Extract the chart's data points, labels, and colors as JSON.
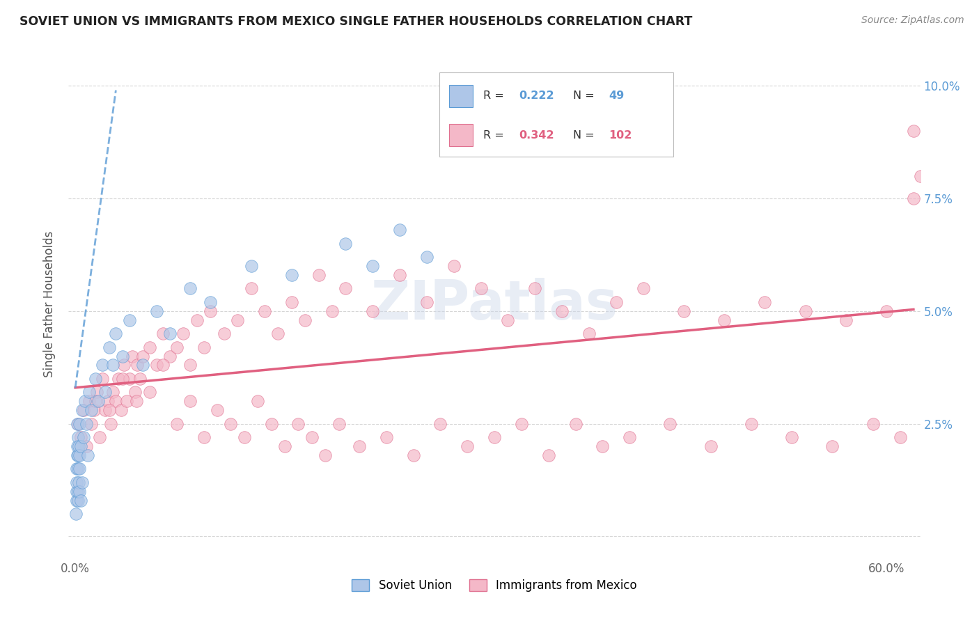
{
  "title": "SOVIET UNION VS IMMIGRANTS FROM MEXICO SINGLE FATHER HOUSEHOLDS CORRELATION CHART",
  "source": "Source: ZipAtlas.com",
  "ylabel": "Single Father Households",
  "background_color": "#ffffff",
  "plot_bg_color": "#ffffff",
  "grid_color": "#cccccc",
  "watermark": "ZIPatlas",
  "soviet_color": "#aec6e8",
  "soviet_edge_color": "#5b9bd5",
  "mexico_color": "#f4b8c8",
  "mexico_edge_color": "#e07090",
  "soviet_line_color": "#5b9bd5",
  "mexico_line_color": "#e06080",
  "legend_R1": "0.222",
  "legend_N1": "49",
  "legend_R2": "0.342",
  "legend_N2": "102",
  "legend_text_color": "#5b9bd5",
  "legend_r2_color": "#e06080",
  "xaxis_ticks": [
    0.0,
    0.1,
    0.2,
    0.3,
    0.4,
    0.5,
    0.6
  ],
  "xaxis_labels": [
    "0.0%",
    "",
    "",
    "",
    "",
    "",
    "60.0%"
  ],
  "yaxis_ticks": [
    0.0,
    0.025,
    0.05,
    0.075,
    0.1
  ],
  "yaxis_labels": [
    "",
    "2.5%",
    "5.0%",
    "7.5%",
    "10.0%"
  ],
  "xlim": [
    -0.005,
    0.625
  ],
  "ylim": [
    -0.005,
    0.108
  ],
  "soviet_x": [
    0.0005,
    0.0008,
    0.001,
    0.001,
    0.0012,
    0.0013,
    0.0015,
    0.0015,
    0.0018,
    0.002,
    0.002,
    0.002,
    0.0022,
    0.0025,
    0.0025,
    0.003,
    0.003,
    0.003,
    0.0032,
    0.004,
    0.004,
    0.005,
    0.005,
    0.006,
    0.007,
    0.008,
    0.009,
    0.01,
    0.012,
    0.015,
    0.017,
    0.02,
    0.022,
    0.025,
    0.028,
    0.03,
    0.035,
    0.04,
    0.05,
    0.06,
    0.07,
    0.085,
    0.1,
    0.13,
    0.16,
    0.2,
    0.22,
    0.24,
    0.26
  ],
  "soviet_y": [
    0.005,
    0.008,
    0.01,
    0.015,
    0.012,
    0.018,
    0.02,
    0.025,
    0.008,
    0.01,
    0.015,
    0.022,
    0.018,
    0.012,
    0.02,
    0.01,
    0.015,
    0.025,
    0.018,
    0.008,
    0.02,
    0.012,
    0.028,
    0.022,
    0.03,
    0.025,
    0.018,
    0.032,
    0.028,
    0.035,
    0.03,
    0.038,
    0.032,
    0.042,
    0.038,
    0.045,
    0.04,
    0.048,
    0.038,
    0.05,
    0.045,
    0.055,
    0.052,
    0.06,
    0.058,
    0.065,
    0.06,
    0.068,
    0.062
  ],
  "mexico_x": [
    0.002,
    0.004,
    0.006,
    0.008,
    0.01,
    0.012,
    0.014,
    0.016,
    0.018,
    0.02,
    0.022,
    0.024,
    0.026,
    0.028,
    0.03,
    0.032,
    0.034,
    0.036,
    0.038,
    0.04,
    0.042,
    0.044,
    0.046,
    0.048,
    0.05,
    0.055,
    0.06,
    0.065,
    0.07,
    0.075,
    0.08,
    0.085,
    0.09,
    0.095,
    0.1,
    0.11,
    0.12,
    0.13,
    0.14,
    0.15,
    0.16,
    0.17,
    0.18,
    0.19,
    0.2,
    0.22,
    0.24,
    0.26,
    0.28,
    0.3,
    0.32,
    0.34,
    0.36,
    0.38,
    0.4,
    0.42,
    0.45,
    0.48,
    0.51,
    0.54,
    0.57,
    0.6,
    0.015,
    0.025,
    0.035,
    0.045,
    0.055,
    0.065,
    0.075,
    0.085,
    0.095,
    0.105,
    0.115,
    0.125,
    0.135,
    0.145,
    0.155,
    0.165,
    0.175,
    0.185,
    0.195,
    0.21,
    0.23,
    0.25,
    0.27,
    0.29,
    0.31,
    0.33,
    0.35,
    0.37,
    0.39,
    0.41,
    0.44,
    0.47,
    0.5,
    0.53,
    0.56,
    0.59,
    0.61,
    0.62,
    0.625,
    0.62
  ],
  "mexico_y": [
    0.025,
    0.022,
    0.028,
    0.02,
    0.03,
    0.025,
    0.028,
    0.032,
    0.022,
    0.035,
    0.028,
    0.03,
    0.025,
    0.032,
    0.03,
    0.035,
    0.028,
    0.038,
    0.03,
    0.035,
    0.04,
    0.032,
    0.038,
    0.035,
    0.04,
    0.042,
    0.038,
    0.045,
    0.04,
    0.042,
    0.045,
    0.038,
    0.048,
    0.042,
    0.05,
    0.045,
    0.048,
    0.055,
    0.05,
    0.045,
    0.052,
    0.048,
    0.058,
    0.05,
    0.055,
    0.05,
    0.058,
    0.052,
    0.06,
    0.055,
    0.048,
    0.055,
    0.05,
    0.045,
    0.052,
    0.055,
    0.05,
    0.048,
    0.052,
    0.05,
    0.048,
    0.05,
    0.03,
    0.028,
    0.035,
    0.03,
    0.032,
    0.038,
    0.025,
    0.03,
    0.022,
    0.028,
    0.025,
    0.022,
    0.03,
    0.025,
    0.02,
    0.025,
    0.022,
    0.018,
    0.025,
    0.02,
    0.022,
    0.018,
    0.025,
    0.02,
    0.022,
    0.025,
    0.018,
    0.025,
    0.02,
    0.022,
    0.025,
    0.02,
    0.025,
    0.022,
    0.02,
    0.025,
    0.022,
    0.09,
    0.08,
    0.075
  ]
}
